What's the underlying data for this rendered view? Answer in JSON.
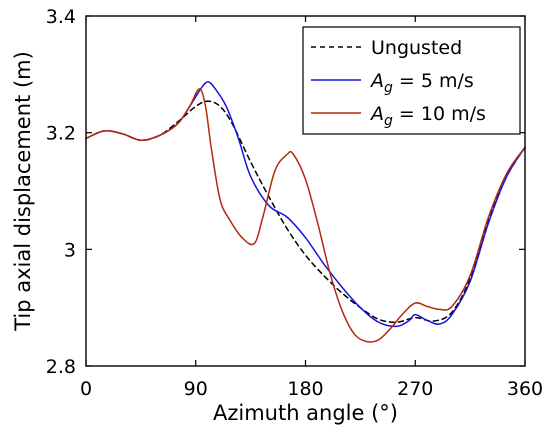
{
  "chart_data": {
    "type": "line",
    "title": "",
    "xlabel": "Azimuth angle (°)",
    "ylabel": "Tip axial displacement (m)",
    "xlim": [
      0,
      360
    ],
    "ylim": [
      2.8,
      3.4
    ],
    "xticks": [
      0,
      90,
      180,
      270,
      360
    ],
    "xtick_labels": [
      "0",
      "90",
      "180",
      "270",
      "360"
    ],
    "yticks": [
      2.8,
      3.0,
      3.2,
      3.4
    ],
    "ytick_labels": [
      "2.8",
      "3",
      "3.2",
      "3.4"
    ],
    "grid": false,
    "legend_position": "top-right",
    "series": [
      {
        "name": "Ungusted",
        "legend_label": {
          "pre": "Ungusted",
          "var": "",
          "sub": "",
          "post": ""
        },
        "color": "#000000",
        "dash": "5,4",
        "x": [
          0,
          15,
          30,
          45,
          60,
          75,
          90,
          100,
          110,
          120,
          135,
          150,
          165,
          180,
          195,
          210,
          225,
          240,
          255,
          270,
          285,
          300,
          315,
          330,
          345,
          360
        ],
        "y": [
          3.19,
          3.203,
          3.198,
          3.187,
          3.195,
          3.218,
          3.245,
          3.254,
          3.245,
          3.215,
          3.15,
          3.09,
          3.035,
          2.99,
          2.955,
          2.925,
          2.9,
          2.88,
          2.875,
          2.883,
          2.877,
          2.892,
          2.95,
          3.05,
          3.125,
          3.175
        ]
      },
      {
        "name": "A_g = 5 m/s",
        "legend_label": {
          "pre": "",
          "var": "A",
          "sub": "g",
          "post": " = 5 m/s"
        },
        "color": "#1515dd",
        "dash": "",
        "x": [
          0,
          15,
          30,
          45,
          60,
          75,
          85,
          95,
          100,
          105,
          115,
          125,
          135,
          150,
          165,
          180,
          195,
          210,
          225,
          240,
          255,
          265,
          270,
          280,
          290,
          300,
          315,
          330,
          345,
          360
        ],
        "y": [
          3.19,
          3.203,
          3.198,
          3.187,
          3.195,
          3.215,
          3.245,
          3.278,
          3.287,
          3.278,
          3.245,
          3.19,
          3.125,
          3.075,
          3.055,
          3.02,
          2.975,
          2.935,
          2.9,
          2.875,
          2.868,
          2.878,
          2.888,
          2.878,
          2.872,
          2.888,
          2.945,
          3.045,
          3.125,
          3.175
        ]
      },
      {
        "name": "A_g = 10 m/s",
        "legend_label": {
          "pre": "",
          "var": "A",
          "sub": "g",
          "post": " = 10 m/s"
        },
        "color": "#b5280f",
        "dash": "",
        "x": [
          0,
          15,
          30,
          45,
          60,
          75,
          85,
          93,
          98,
          103,
          110,
          118,
          128,
          138,
          145,
          155,
          165,
          170,
          180,
          190,
          200,
          210,
          220,
          230,
          240,
          250,
          260,
          270,
          280,
          290,
          300,
          315,
          330,
          345,
          360
        ],
        "y": [
          3.19,
          3.203,
          3.198,
          3.187,
          3.195,
          3.215,
          3.245,
          3.275,
          3.245,
          3.17,
          3.085,
          3.05,
          3.02,
          3.01,
          3.055,
          3.135,
          3.163,
          3.163,
          3.12,
          3.045,
          2.96,
          2.895,
          2.855,
          2.842,
          2.845,
          2.865,
          2.89,
          2.908,
          2.902,
          2.897,
          2.902,
          2.955,
          3.055,
          3.13,
          3.175
        ]
      }
    ]
  }
}
